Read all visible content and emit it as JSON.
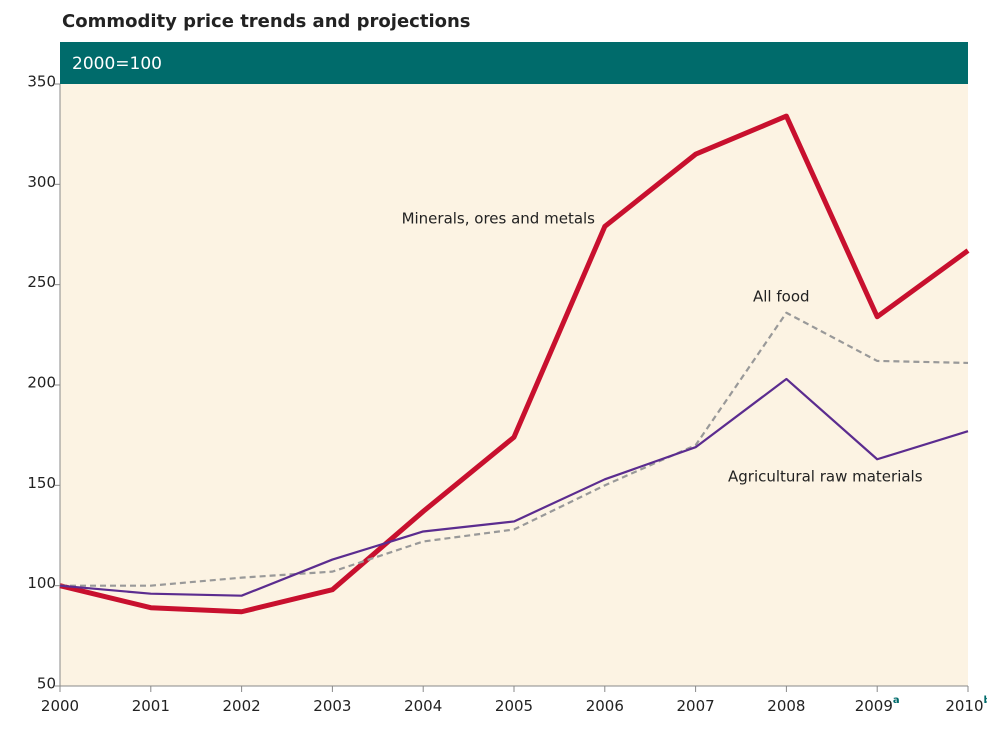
{
  "chart_data": {
    "type": "line",
    "title": "Commodity price trends and projections",
    "subtitle": "2000=100",
    "x": [
      2000,
      2001,
      2002,
      2003,
      2004,
      2005,
      2006,
      2007,
      2008,
      2009,
      2010
    ],
    "xlim": [
      2000,
      2010
    ],
    "xticks": [
      2000,
      2001,
      2002,
      2003,
      2004,
      2005,
      2006,
      2007,
      2008,
      {
        "value": 2009,
        "label": "2009",
        "note": "a"
      },
      {
        "value": 2010,
        "label": "2010",
        "note": "b"
      }
    ],
    "ylim": [
      50,
      350
    ],
    "yticks": [
      50,
      100,
      150,
      200,
      250,
      300,
      350
    ],
    "series": [
      {
        "name": "Minerals, ores and metals",
        "color": "#c8102e",
        "width": 5,
        "dashed": false,
        "values": [
          100,
          89,
          87,
          98,
          137,
          174,
          279,
          315,
          334,
          234,
          267
        ]
      },
      {
        "name": "All food",
        "color": "#999999",
        "width": 2.2,
        "dashed": true,
        "values": [
          100,
          100,
          104,
          107,
          122,
          128,
          150,
          170,
          236,
          212,
          211
        ]
      },
      {
        "name": "Agricultural raw materials",
        "color": "#5b2c8f",
        "width": 2.2,
        "dashed": false,
        "values": [
          100,
          96,
          95,
          113,
          127,
          132,
          153,
          169,
          203,
          163,
          177
        ]
      }
    ]
  }
}
